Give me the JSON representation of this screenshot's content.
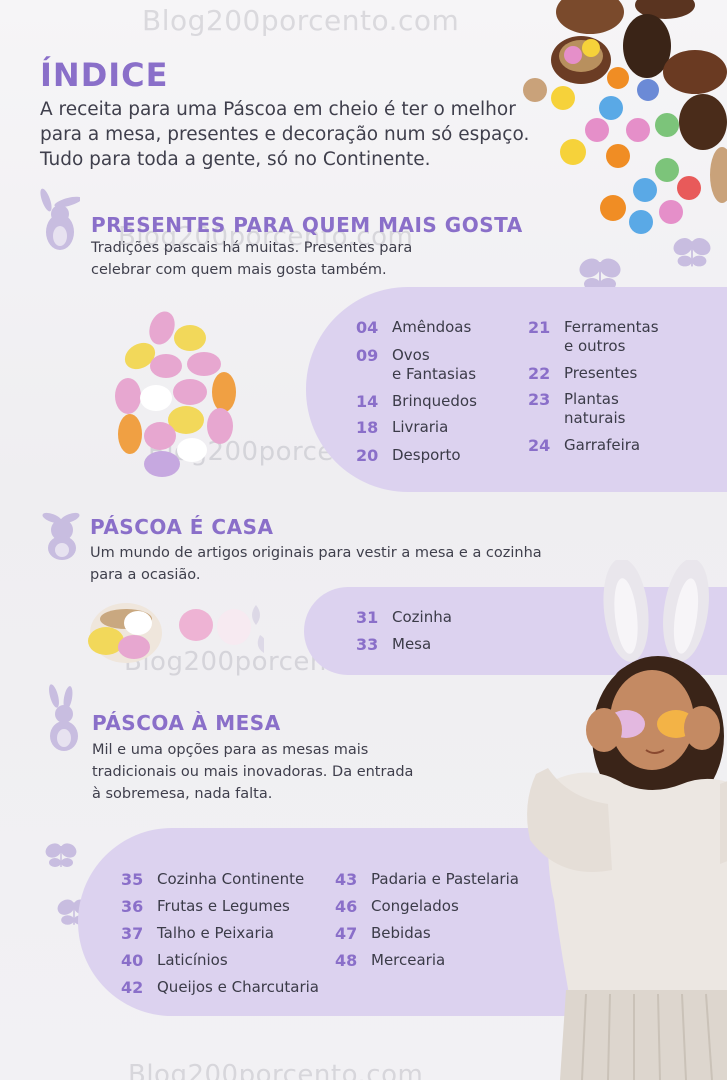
{
  "watermark": "Blog200porcento.com",
  "header": {
    "title": "ÍNDICE",
    "intro_lines": [
      "A receita para uma Páscoa em cheio é ter o melhor",
      "para a mesa, presentes e decoração num só espaço.",
      "Tudo para toda a gente, só no Continente."
    ]
  },
  "sections": [
    {
      "title": "PRESENTES PARA QUEM MAIS GOSTA",
      "desc_lines": [
        "Tradições pascais há muitas. Presentes para",
        "celebrar com quem mais gosta também."
      ],
      "col1": [
        {
          "num": "04",
          "lines": [
            "Amêndoas"
          ]
        },
        {
          "num": "09",
          "lines": [
            "Ovos",
            "e Fantasias"
          ]
        },
        {
          "num": "14",
          "lines": [
            "Brinquedos"
          ]
        },
        {
          "num": "18",
          "lines": [
            "Livraria"
          ]
        },
        {
          "num": "20",
          "lines": [
            "Desporto"
          ]
        }
      ],
      "col2": [
        {
          "num": "21",
          "lines": [
            "Ferramentas",
            "e outros"
          ]
        },
        {
          "num": "22",
          "lines": [
            "Presentes"
          ]
        },
        {
          "num": "23",
          "lines": [
            "Plantas",
            "naturais"
          ]
        },
        {
          "num": "24",
          "lines": [
            "Garrafeira"
          ]
        }
      ]
    },
    {
      "title": "PÁSCOA É CASA",
      "desc_lines": [
        "Um mundo de artigos originais para vestir a mesa e a cozinha",
        "para a ocasião."
      ],
      "col1": [
        {
          "num": "31",
          "lines": [
            "Cozinha"
          ]
        },
        {
          "num": "33",
          "lines": [
            "Mesa"
          ]
        }
      ]
    },
    {
      "title": "PÁSCOA À MESA",
      "desc_lines": [
        "Mil e uma opções para as mesas mais",
        "tradicionais ou mais inovadoras. Da entrada",
        "à sobremesa, nada falta."
      ],
      "col1": [
        {
          "num": "35",
          "lines": [
            "Cozinha Continente"
          ]
        },
        {
          "num": "36",
          "lines": [
            "Frutas e Legumes"
          ]
        },
        {
          "num": "37",
          "lines": [
            "Talho e Peixaria"
          ]
        },
        {
          "num": "40",
          "lines": [
            "Laticínios"
          ]
        },
        {
          "num": "42",
          "lines": [
            "Queijos e Charcutaria"
          ]
        }
      ],
      "col2": [
        {
          "num": "43",
          "lines": [
            "Padaria e Pastelaria"
          ]
        },
        {
          "num": "46",
          "lines": [
            "Congelados"
          ]
        },
        {
          "num": "47",
          "lines": [
            "Bebidas"
          ]
        },
        {
          "num": "48",
          "lines": [
            "Mercearia"
          ]
        }
      ]
    }
  ],
  "colors": {
    "accent": "#8a6fc9",
    "pill": "#dcd2ef",
    "text": "#3b3b48"
  },
  "icons": [
    "bunny-icon",
    "butterfly-icon",
    "egg-decoration"
  ]
}
